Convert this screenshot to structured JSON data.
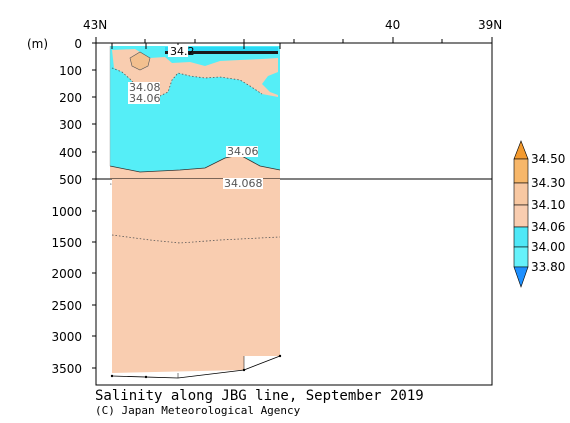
{
  "chart_data": {
    "type": "heatmap",
    "title": "Salinity along JBG line, September 2019",
    "credit": "(C) Japan Meteorological Agency",
    "ylabel": "(m)",
    "x_ticks": [
      "43N",
      "40",
      "39N"
    ],
    "y_ticks_upper": [
      "0",
      "100",
      "200",
      "300",
      "400",
      "500"
    ],
    "y_ticks_lower": [
      "1000",
      "1500",
      "2000",
      "2500",
      "3000",
      "3500"
    ],
    "ylim": [
      0,
      3700
    ],
    "y_scale_break_at": 500,
    "colorbar": {
      "levels": [
        "34.50",
        "34.30",
        "34.10",
        "34.06",
        "34.00",
        "33.80"
      ],
      "colors": [
        "#f39a2e",
        "#f7b76a",
        "#f5c9a4",
        "#2ad9f5",
        "#6ef0fb",
        "#1e90ff"
      ],
      "bins": [
        {
          "range": "> 34.50",
          "color": "#f39a2e"
        },
        {
          "range": "34.30-34.50",
          "color": "#f7b76a"
        },
        {
          "range": "34.10-34.30",
          "color": "#f8c8a2"
        },
        {
          "range": "34.06-34.10",
          "color": "#f9cdb0"
        },
        {
          "range": "34.00-34.06",
          "color": "#4fe8f7"
        },
        {
          "range": "33.80-34.00",
          "color": "#66f2fb"
        },
        {
          "range": "< 33.80",
          "color": "#1e90ff"
        }
      ]
    },
    "contour_labels": [
      "34.2",
      "34.08",
      "34.06",
      "34.06",
      "34.068"
    ]
  }
}
